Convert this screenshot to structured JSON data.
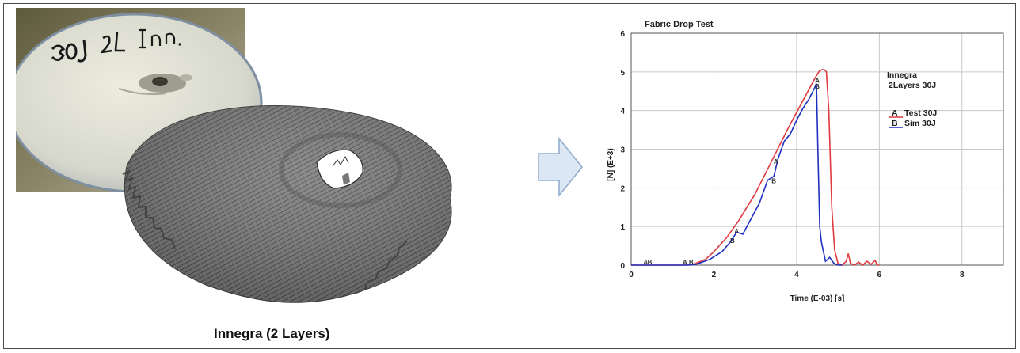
{
  "caption": "Innegra (2 Layers)",
  "photo": {
    "handwritten_label": "30J 2L Inn."
  },
  "colors": {
    "test": "#e0393e",
    "sim": "#1f2fbf",
    "grid": "#c8c8c8",
    "arrow_fill": "#dbe7f5",
    "arrow_stroke": "#8eaacb"
  },
  "chart_data": {
    "type": "line",
    "title": "Fabric Drop Test",
    "xlabel": "Time (E-03)  [s]",
    "ylabel": "[N] (E+3)",
    "xlim": [
      0,
      9
    ],
    "ylim": [
      0,
      6
    ],
    "x_ticks": [
      "0",
      "2",
      "4",
      "6",
      "8"
    ],
    "y_ticks": [
      "0",
      "1",
      "2",
      "3",
      "4",
      "5",
      "6"
    ],
    "grid": true,
    "legend_title": [
      "Innegra",
      "2Layers 30J"
    ],
    "legend_position": "right",
    "series": [
      {
        "name": "Test 30J",
        "marker": "A",
        "color": "#e0393e",
        "x": [
          0.0,
          1.3,
          1.5,
          1.8,
          2.0,
          2.3,
          2.6,
          3.0,
          3.4,
          3.8,
          4.2,
          4.45,
          4.55,
          4.62,
          4.68,
          4.72,
          4.78,
          4.85,
          4.92,
          5.0,
          5.1,
          5.2,
          5.25,
          5.3,
          5.4,
          5.5,
          5.6,
          5.7,
          5.8,
          5.9,
          5.95,
          6.0
        ],
        "y": [
          0.0,
          0.0,
          0.02,
          0.15,
          0.35,
          0.7,
          1.15,
          1.85,
          2.7,
          3.55,
          4.35,
          4.85,
          5.02,
          5.06,
          5.05,
          5.0,
          4.0,
          1.5,
          0.4,
          0.05,
          0.0,
          0.1,
          0.3,
          0.05,
          0.0,
          0.08,
          0.0,
          0.1,
          0.02,
          0.12,
          0.0,
          0.0
        ]
      },
      {
        "name": "Sim 30J",
        "marker": "B",
        "color": "#1f2fbf",
        "x": [
          0.0,
          1.4,
          1.6,
          1.9,
          2.2,
          2.4,
          2.55,
          2.7,
          2.9,
          3.1,
          3.3,
          3.45,
          3.55,
          3.7,
          3.85,
          4.0,
          4.15,
          4.3,
          4.42,
          4.48,
          4.52,
          4.56,
          4.6,
          4.65,
          4.7,
          4.8,
          4.9,
          5.0,
          5.1
        ],
        "y": [
          0.0,
          0.0,
          0.03,
          0.15,
          0.35,
          0.6,
          0.85,
          0.8,
          1.2,
          1.6,
          2.2,
          2.3,
          2.75,
          3.2,
          3.4,
          3.75,
          4.05,
          4.3,
          4.55,
          4.7,
          2.8,
          1.0,
          0.6,
          0.35,
          0.1,
          0.2,
          0.05,
          0.0,
          0.0
        ]
      }
    ]
  }
}
